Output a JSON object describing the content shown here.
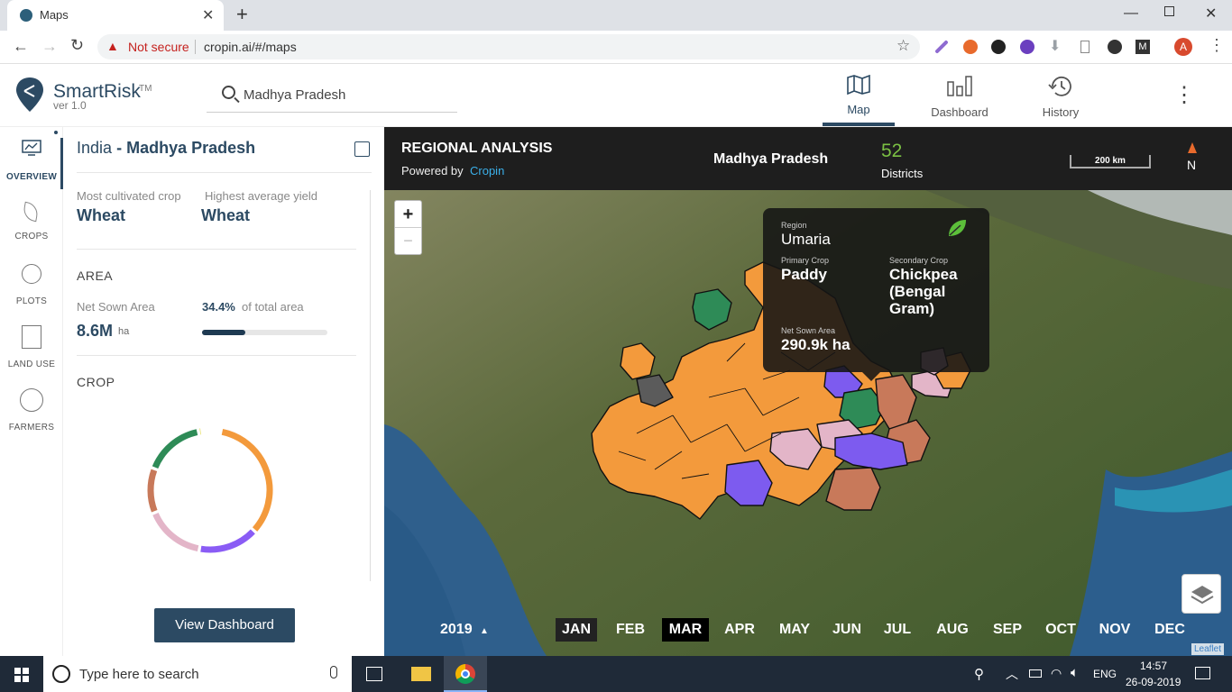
{
  "browser": {
    "tab_title": "Maps",
    "not_secure": "Not secure",
    "url": "cropin.ai/#/maps"
  },
  "app": {
    "name": "SmartRisk",
    "tm": "TM",
    "version": "ver 1.0",
    "search_value": "Madhya Pradesh",
    "nav": {
      "map": "Map",
      "dashboard": "Dashboard",
      "history": "History"
    }
  },
  "leftnav": {
    "overview": "OVERVIEW",
    "crops": "CROPS",
    "plots": "PLOTS",
    "land_use": "LAND USE",
    "farmers": "FARMERS"
  },
  "panel": {
    "country": "India",
    "sep": "-",
    "state": "Madhya Pradesh",
    "most_cultivated_label": "Most cultivated crop",
    "most_cultivated": "Wheat",
    "highest_yield_label": "Highest average yield",
    "highest_yield": "Wheat",
    "area_heading": "AREA",
    "net_sown_label": "Net Sown Area",
    "net_sown_value": "8.6M",
    "net_sown_unit": "ha",
    "pct_value": "34.4%",
    "pct_suffix": "of total area",
    "pct_fraction": 0.344,
    "crop_heading": "CROP",
    "donut": [
      {
        "color": "#f39a3c",
        "frac": 0.34
      },
      {
        "color": "#8a5cf5",
        "frac": 0.16
      },
      {
        "color": "#e3b5c8",
        "frac": 0.16
      },
      {
        "color": "#c8795a",
        "frac": 0.12
      },
      {
        "color": "#2e8b57",
        "frac": 0.16
      },
      {
        "color": "#e9e37a",
        "frac": 0.01
      }
    ],
    "view_dashboard": "View Dashboard"
  },
  "map": {
    "title": "REGIONAL ANALYSIS",
    "powered_by": "Powered by",
    "powered_brand": "Cropin",
    "region_name": "Madhya Pradesh",
    "districts_count": "52",
    "districts_label": "Districts",
    "scale": "200 km",
    "north": "N",
    "zoom_in": "+",
    "zoom_out": "−",
    "tooltip": {
      "region_label": "Region",
      "region": "Umaria",
      "primary_label": "Primary Crop",
      "primary": "Paddy",
      "secondary_label": "Secondary Crop",
      "secondary": "Chickpea (Bengal Gram)",
      "nsa_label": "Net Sown Area",
      "nsa": "290.9k ha"
    },
    "year": "2019",
    "months": [
      "JAN",
      "FEB",
      "MAR",
      "APR",
      "MAY",
      "JUN",
      "JUL",
      "AUG",
      "SEP",
      "OCT",
      "NOV",
      "DEC"
    ],
    "attribution": "Leaflet"
  },
  "taskbar": {
    "search_placeholder": "Type here to search",
    "lang": "ENG",
    "time": "14:57",
    "date": "26-09-2019"
  }
}
